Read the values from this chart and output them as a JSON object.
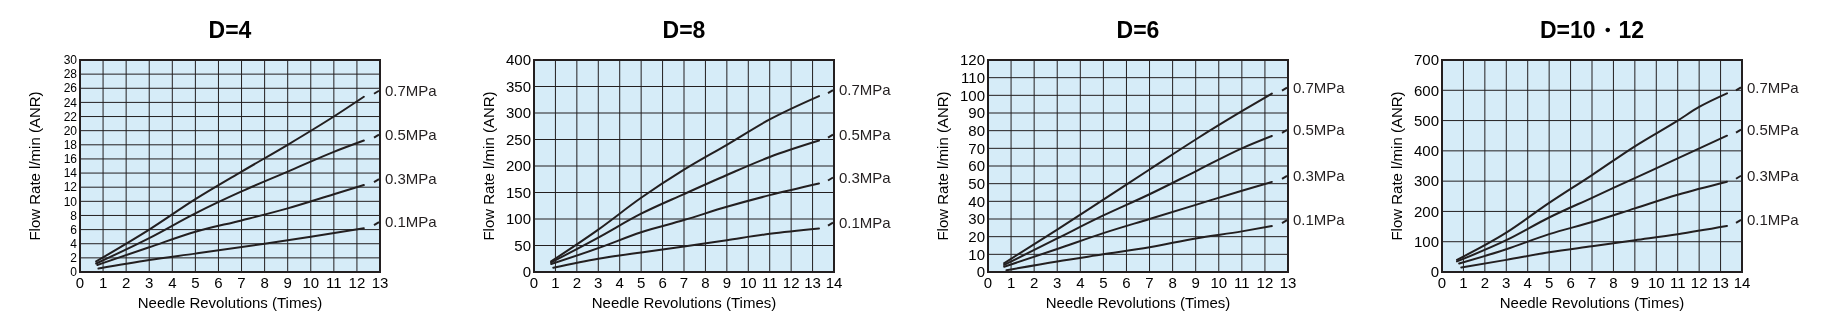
{
  "chart_data": [
    {
      "type": "line",
      "title": "D=4",
      "xlabel": "Needle Revolutions (Times)",
      "ylabel": "Flow Rate l/min (ANR)",
      "xlim": [
        0,
        13
      ],
      "xticks": [
        0,
        1,
        2,
        3,
        4,
        5,
        6,
        7,
        8,
        9,
        10,
        11,
        12,
        13
      ],
      "ylim": [
        0,
        30
      ],
      "yticks": [
        0,
        2,
        4,
        6,
        8,
        10,
        12,
        14,
        16,
        18,
        20,
        22,
        24,
        26,
        28,
        30
      ],
      "grid": true,
      "legend": "right",
      "series": [
        {
          "name": "0.7MPa",
          "color": "#231f20",
          "x": [
            0.7,
            3,
            5,
            7,
            9,
            11,
            12.3
          ],
          "values": [
            1.5,
            6,
            10.3,
            14.2,
            18,
            22,
            24.8
          ]
        },
        {
          "name": "0.5MPa",
          "color": "#231f20",
          "x": [
            0.7,
            3,
            5,
            7,
            9,
            11,
            12.3
          ],
          "values": [
            1.2,
            4.8,
            8.3,
            11.4,
            14.2,
            17,
            18.6
          ]
        },
        {
          "name": "0.3MPa",
          "color": "#231f20",
          "x": [
            0.75,
            3,
            5,
            7,
            9,
            11,
            12.3
          ],
          "values": [
            1,
            3.5,
            5.7,
            7.3,
            9,
            11,
            12.3
          ]
        },
        {
          "name": "0.1MPa",
          "color": "#231f20",
          "x": [
            0.8,
            3,
            5,
            8,
            10,
            12.3
          ],
          "values": [
            0.5,
            1.7,
            2.6,
            4,
            5,
            6.2
          ]
        }
      ]
    },
    {
      "type": "line",
      "title": "D=8",
      "xlabel": "Needle Revolutions (Times)",
      "ylabel": "Flow Rate l/min (ANR)",
      "xlim": [
        0,
        14
      ],
      "xticks": [
        0,
        1,
        2,
        3,
        4,
        5,
        6,
        7,
        8,
        9,
        10,
        11,
        12,
        13,
        14
      ],
      "ylim": [
        0,
        400
      ],
      "yticks": [
        0,
        50,
        100,
        150,
        200,
        250,
        300,
        350,
        400
      ],
      "grid": true,
      "legend": "right",
      "series": [
        {
          "name": "0.7MPa",
          "color": "#231f20",
          "x": [
            0.8,
            3,
            5,
            7,
            9,
            11,
            13.3
          ],
          "values": [
            20,
            80,
            140,
            193,
            240,
            288,
            332
          ]
        },
        {
          "name": "0.5MPa",
          "color": "#231f20",
          "x": [
            0.8,
            3,
            5,
            7,
            9,
            11,
            13.3
          ],
          "values": [
            18,
            65,
            110,
            147,
            183,
            217,
            248
          ]
        },
        {
          "name": "0.3MPa",
          "color": "#231f20",
          "x": [
            0.8,
            3,
            5,
            7,
            9,
            11,
            13.3
          ],
          "values": [
            15,
            45,
            75,
            98,
            123,
            145,
            167
          ]
        },
        {
          "name": "0.1MPa",
          "color": "#231f20",
          "x": [
            0.9,
            3,
            5,
            7,
            9,
            11,
            13.3
          ],
          "values": [
            8,
            25,
            37,
            48,
            60,
            72,
            82
          ]
        }
      ]
    },
    {
      "type": "line",
      "title": "D=6",
      "xlabel": "Needle Revolutions (Times)",
      "ylabel": "Flow Rate l/min (ANR)",
      "xlim": [
        0,
        13
      ],
      "xticks": [
        0,
        1,
        2,
        3,
        4,
        5,
        6,
        7,
        8,
        9,
        10,
        11,
        12,
        13
      ],
      "ylim": [
        0,
        120
      ],
      "yticks": [
        0,
        10,
        20,
        30,
        40,
        50,
        60,
        70,
        80,
        90,
        100,
        110,
        120
      ],
      "grid": true,
      "legend": "right",
      "series": [
        {
          "name": "0.7MPa",
          "color": "#231f20",
          "x": [
            0.7,
            3,
            5,
            7,
            9,
            11,
            12.3
          ],
          "values": [
            5,
            24,
            41,
            58,
            75,
            91,
            101
          ]
        },
        {
          "name": "0.5MPa",
          "color": "#231f20",
          "x": [
            0.7,
            3,
            5,
            7,
            9,
            11,
            12.3
          ],
          "values": [
            4,
            19,
            32,
            44,
            57,
            70,
            77
          ]
        },
        {
          "name": "0.3MPa",
          "color": "#231f20",
          "x": [
            0.7,
            3,
            5,
            7,
            9,
            11,
            12.3
          ],
          "values": [
            3,
            13,
            22,
            30,
            38,
            46,
            51
          ]
        },
        {
          "name": "0.1MPa",
          "color": "#231f20",
          "x": [
            0.8,
            3,
            5,
            7,
            9,
            11,
            12.3
          ],
          "values": [
            1,
            6,
            10,
            14,
            19,
            23,
            26
          ]
        }
      ]
    },
    {
      "type": "line",
      "title": "D=10・12",
      "xlabel": "Needle Revolutions (Times)",
      "ylabel": "Flow Rate l/min (ANR)",
      "xlim": [
        0,
        14
      ],
      "xticks": [
        0,
        1,
        2,
        3,
        4,
        5,
        6,
        7,
        8,
        9,
        10,
        11,
        12,
        13,
        14
      ],
      "ylim": [
        0,
        700
      ],
      "yticks": [
        0,
        100,
        200,
        300,
        400,
        500,
        600,
        700
      ],
      "grid": true,
      "legend": "right",
      "series": [
        {
          "name": "0.7MPa",
          "color": "#231f20",
          "x": [
            0.7,
            3,
            5,
            7,
            9,
            11,
            12,
            13.3
          ],
          "values": [
            40,
            130,
            228,
            320,
            415,
            500,
            545,
            590
          ]
        },
        {
          "name": "0.5MPa",
          "color": "#231f20",
          "x": [
            0.7,
            3,
            5,
            7,
            9,
            11,
            13.3
          ],
          "values": [
            35,
            105,
            180,
            245,
            310,
            375,
            450
          ]
        },
        {
          "name": "0.3MPa",
          "color": "#231f20",
          "x": [
            0.8,
            3,
            5,
            7,
            9,
            11,
            13.3
          ],
          "values": [
            28,
            75,
            125,
            165,
            210,
            255,
            298
          ]
        },
        {
          "name": "0.1MPa",
          "color": "#231f20",
          "x": [
            0.9,
            3,
            5,
            7,
            9,
            11,
            13.3
          ],
          "values": [
            15,
            40,
            65,
            85,
            105,
            125,
            152
          ]
        }
      ]
    }
  ]
}
